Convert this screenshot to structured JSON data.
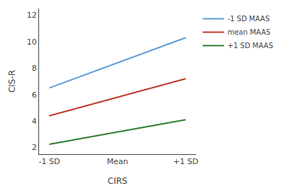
{
  "chart_data": {
    "type": "line",
    "xlabel": "CIRS",
    "ylabel": "CIS-R",
    "x": [
      0,
      2
    ],
    "xlim": [
      -0.15,
      2.15
    ],
    "xticks": [
      {
        "value": 0,
        "label": "-1 SD"
      },
      {
        "value": 1,
        "label": "Mean"
      },
      {
        "value": 2,
        "label": "+1 SD"
      }
    ],
    "ylim": [
      1.5,
      12.5
    ],
    "yticks": [
      2,
      4,
      6,
      8,
      10,
      12
    ],
    "grid": false,
    "legend": "right",
    "series": [
      {
        "name": "-1 SD MAAS",
        "color": "#5B9BD5",
        "values": [
          6.5,
          10.3
        ]
      },
      {
        "name": "mean MAAS",
        "color": "#C0392B",
        "values": [
          4.4,
          7.2
        ]
      },
      {
        "name": "+1 SD MAAS",
        "color": "#2E7D32",
        "values": [
          2.25,
          4.1
        ]
      }
    ]
  }
}
